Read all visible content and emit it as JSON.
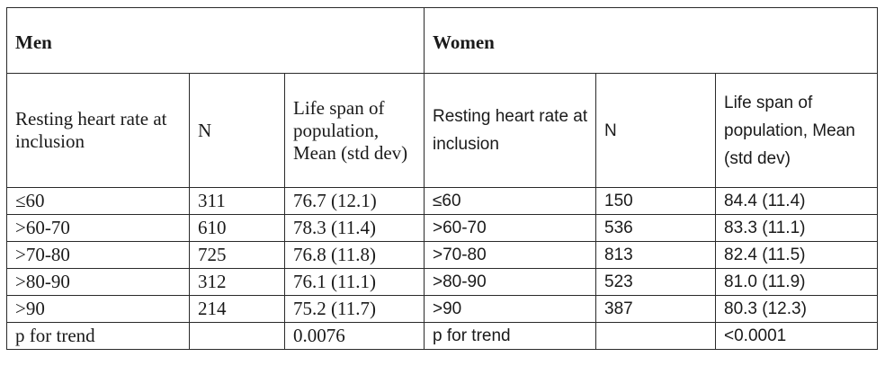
{
  "men": {
    "group_label": "Men",
    "headers": [
      "Resting heart rate at inclusion",
      "N",
      "Life span of population, Mean (std dev)"
    ],
    "rows": [
      [
        "≤60",
        "311",
        "76.7 (12.1)"
      ],
      [
        ">60-70",
        "610",
        "78.3 (11.4)"
      ],
      [
        ">70-80",
        "725",
        "76.8 (11.8)"
      ],
      [
        ">80-90",
        "312",
        "76.1 (11.1)"
      ],
      [
        ">90",
        "214",
        "75.2 (11.7)"
      ]
    ],
    "trend_label": "p for trend",
    "trend_value": "0.0076"
  },
  "women": {
    "group_label": "Women",
    "headers": [
      "Resting heart rate at inclusion",
      "N",
      "Life span of population, Mean (std dev)"
    ],
    "rows": [
      [
        "≤60",
        "150",
        "84.4 (11.4)"
      ],
      [
        ">60-70",
        "536",
        "83.3 (11.1)"
      ],
      [
        ">70-80",
        "813",
        "82.4 (11.5)"
      ],
      [
        ">80-90",
        "523",
        "81.0 (11.9)"
      ],
      [
        ">90",
        "387",
        "80.3 (12.3)"
      ]
    ],
    "trend_label": "p for trend",
    "trend_value": "<0.0001"
  }
}
